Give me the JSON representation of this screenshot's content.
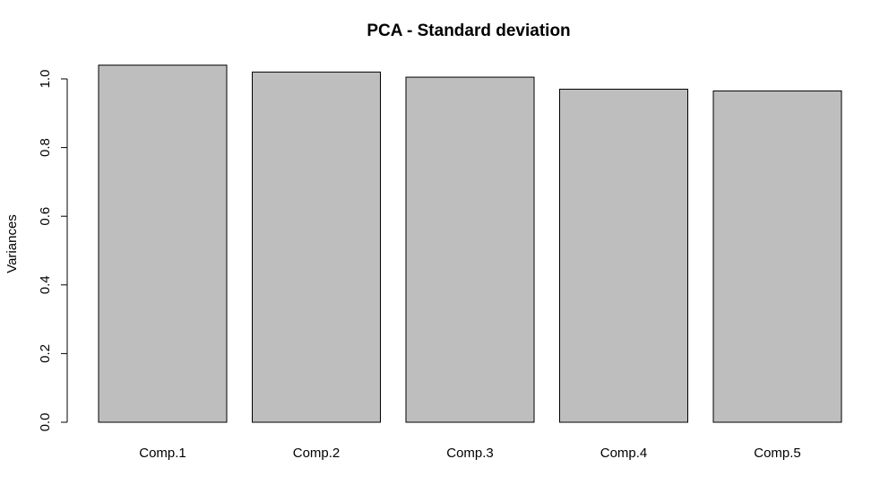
{
  "chart_data": {
    "type": "bar",
    "title": "PCA - Standard deviation",
    "xlabel": "",
    "ylabel": "Variances",
    "categories": [
      "Comp.1",
      "Comp.2",
      "Comp.3",
      "Comp.4",
      "Comp.5"
    ],
    "values": [
      1.04,
      1.02,
      1.005,
      0.97,
      0.965
    ],
    "ylim": [
      0,
      1.04
    ],
    "yticks": [
      0.0,
      0.2,
      0.4,
      0.6,
      0.8,
      1.0
    ],
    "ytick_labels": [
      "0.0",
      "0.2",
      "0.4",
      "0.6",
      "0.8",
      "1.0"
    ],
    "grid": false,
    "legend": "none",
    "colors": {
      "bar_fill": "#bebebe",
      "bar_stroke": "#000000",
      "background": "#ffffff"
    }
  }
}
